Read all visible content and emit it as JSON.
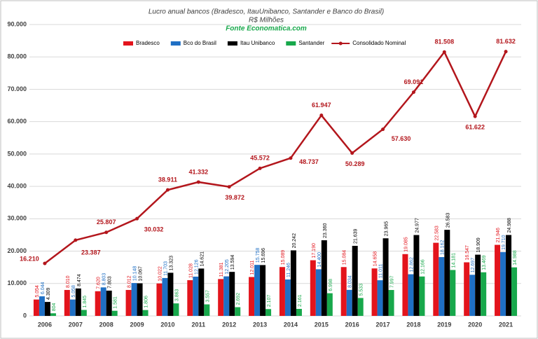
{
  "chart_data": {
    "type": "bar",
    "title": "Lucro anual bancos (Bradesco, ItauUnibanco, Santander e Banco do Brasil)",
    "subtitle": "R$ Milhões",
    "source": "Fonte Economatica.com",
    "categories": [
      "2006",
      "2007",
      "2008",
      "2009",
      "2010",
      "2011",
      "2012",
      "2013",
      "2014",
      "2015",
      "2016",
      "2017",
      "2018",
      "2019",
      "2020",
      "2021"
    ],
    "ylim": [
      0,
      90000
    ],
    "yticks": [
      0,
      {
        "value": 10000,
        "label": "10.000"
      },
      {
        "value": 20000,
        "label": "20.000"
      },
      {
        "value": 30000,
        "label": "30.000"
      },
      {
        "value": 40000,
        "label": "40.000"
      },
      {
        "value": 50000,
        "label": "50.000"
      },
      {
        "value": 60000,
        "label": "60.000"
      },
      {
        "value": 70000,
        "label": "70.000"
      },
      {
        "value": 80000,
        "label": "80.000"
      },
      {
        "value": 90000,
        "label": "90.000"
      }
    ],
    "grid": true,
    "legend": "top",
    "series": [
      {
        "name": "Bradesco",
        "type": "bar",
        "color": "#e3141c",
        "values": [
          5054,
          8010,
          7620,
          8012,
          10022,
          11028,
          11381,
          12011,
          15089,
          17190,
          15084,
          14658,
          19085,
          22583,
          16547,
          21946
        ],
        "value_labels": [
          "5.054",
          "8.010",
          "7.620",
          "8.012",
          "10.022",
          "11.028",
          "11.381",
          "12.011",
          "15.089",
          "17.190",
          "15.084",
          "14.658",
          "19.085",
          "22.583",
          "16.547",
          "21.946"
        ]
      },
      {
        "name": "Bco do Brasil",
        "type": "bar",
        "color": "#1f6fc4",
        "values": [
          6044,
          5058,
          8803,
          10148,
          11703,
          12126,
          12205,
          15758,
          11246,
          14400,
          8034,
          11011,
          12862,
          18162,
          12697,
          19710
        ],
        "value_labels": [
          "6.044",
          "5.058",
          "8.803",
          "10.148",
          "11.703",
          "12.126",
          "12.205",
          "15.758",
          "11.246",
          "14.400",
          "8.034",
          "11.011",
          "12.862",
          "18.162",
          "12.697",
          "19.710"
        ]
      },
      {
        "name": "Itau Unibanco",
        "type": "bar",
        "color": "#000000",
        "values": [
          4309,
          8474,
          7803,
          10067,
          13323,
          14621,
          13594,
          15696,
          20242,
          23360,
          21639,
          23965,
          24977,
          26583,
          18909,
          24988
        ],
        "value_labels": [
          "4.309",
          "8.474",
          "7.803",
          "10.067",
          "13.323",
          "14.621",
          "13.594",
          "15.696",
          "20.242",
          "23.360",
          "21.639",
          "23.965",
          "24.977",
          "26.583",
          "18.909",
          "24.988"
        ]
      },
      {
        "name": "Santander",
        "type": "bar",
        "color": "#17a84b",
        "values": [
          804,
          1845,
          1581,
          1806,
          3863,
          3557,
          2692,
          2107,
          2161,
          6998,
          5533,
          7997,
          12166,
          14181,
          13469,
          14988
        ],
        "value_labels": [
          "804",
          "1.845",
          "1.581",
          "1.806",
          "3.863",
          "3.557",
          "2.692",
          "2.107",
          "2.161",
          "6.998",
          "5.533",
          "7.997",
          "12.166",
          "14.181",
          "13.469",
          "14.988"
        ]
      },
      {
        "name": "Consolidado Nominal",
        "type": "line",
        "color": "#b3161c",
        "values": [
          16210,
          23387,
          25807,
          30032,
          38911,
          41332,
          39872,
          45572,
          48737,
          61947,
          50289,
          57630,
          69091,
          81508,
          61622,
          81632
        ],
        "value_labels": [
          "16.210",
          "23.387",
          "25.807",
          "30.032",
          "38.911",
          "41.332",
          "39.872",
          "45.572",
          "48.737",
          "61.947",
          "50.289",
          "57.630",
          "69.091",
          "81.508",
          "61.622",
          "81.632"
        ]
      }
    ]
  }
}
